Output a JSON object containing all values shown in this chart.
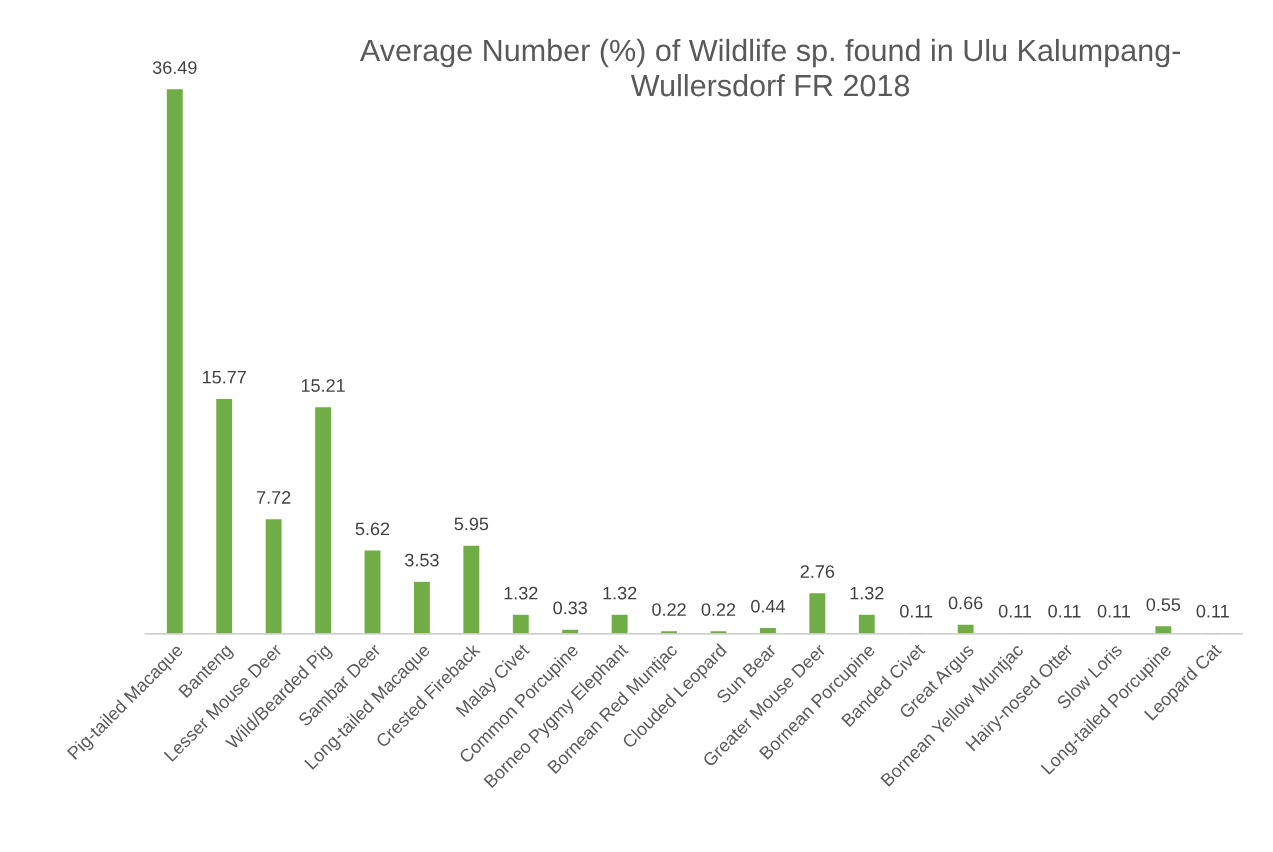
{
  "chart_data": {
    "type": "bar",
    "title": "Average Number (%) of Wildlife sp. found in Ulu Kalumpang-\nWullersdorf FR 2018",
    "categories": [
      "Pig-tailed Macaque",
      "Banteng",
      "Lesser Mouse Deer",
      "Wild/Bearded Pig",
      "Sambar Deer",
      "Long-tailed Macaque",
      "Crested Fireback",
      "Malay Civet",
      "Common Porcupine",
      "Borneo Pygmy Elephant",
      "Bornean Red Muntjac",
      "Clouded Leopard",
      "Sun Bear",
      "Greater Mouse Deer",
      "Bornean Porcupine",
      "Banded Civet",
      "Great Argus",
      "Bornean Yellow Muntjac",
      "Hairy-nosed Otter",
      "Slow Loris",
      "Long-tailed Porcupine",
      "Leopard Cat"
    ],
    "values": [
      36.49,
      15.77,
      7.72,
      15.21,
      5.62,
      3.53,
      5.95,
      1.32,
      0.33,
      1.32,
      0.22,
      0.22,
      0.44,
      2.76,
      1.32,
      0.11,
      0.66,
      0.11,
      0.11,
      0.11,
      0.55,
      0.11
    ],
    "color": "#70ad47",
    "data_labels": true,
    "grid": false,
    "legend": false,
    "tick_labels": "x"
  }
}
